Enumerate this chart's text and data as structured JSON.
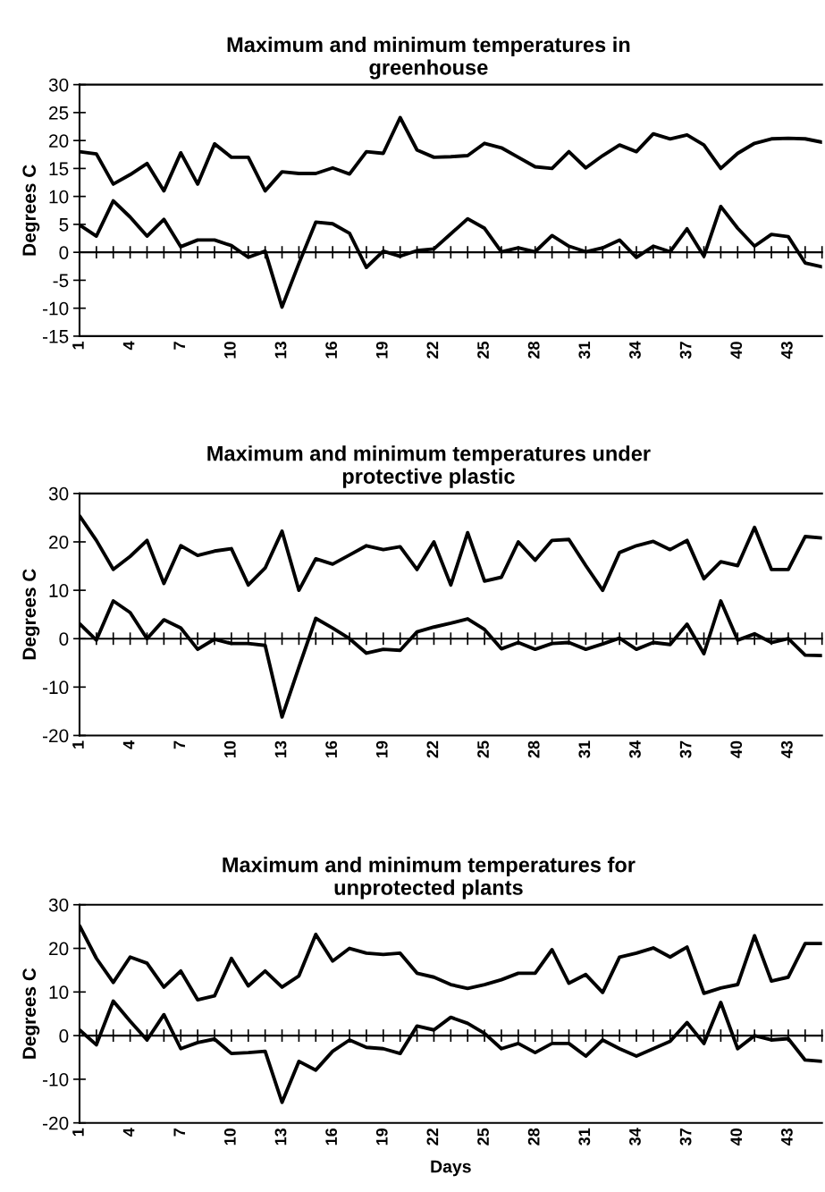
{
  "chart_data": [
    {
      "type": "line",
      "title": "Maximum and minimum temperatures in\ngreenhouse",
      "ylabel": "Degrees C",
      "categories": [
        "1",
        null,
        null,
        "4",
        null,
        null,
        "7",
        null,
        null,
        "10",
        null,
        null,
        "13",
        null,
        null,
        "16",
        null,
        null,
        "19",
        null,
        null,
        "22",
        null,
        null,
        "25",
        null,
        null,
        "28",
        null,
        null,
        "31",
        null,
        null,
        "34",
        null,
        null,
        "37",
        null,
        null,
        "40",
        null,
        null,
        "43",
        null,
        null
      ],
      "series": [
        {
          "color": "#000000",
          "values": [
            18,
            17.6,
            12.2,
            13.9,
            15.9,
            11,
            17.8,
            12.2,
            19.4,
            17,
            17,
            11,
            14.4,
            14.1,
            14.1,
            15.1,
            14,
            18,
            17.7,
            24.1,
            18.3,
            17,
            17.1,
            17.3,
            19.5,
            18.7,
            17,
            15.3,
            15,
            18,
            15.1,
            17.3,
            19.2,
            18,
            21.2,
            20.3,
            21,
            19.2,
            15,
            17.7,
            19.5,
            20.3,
            20.4,
            20.3,
            19.7
          ]
        },
        {
          "color": "#000000",
          "values": [
            4.9,
            2.9,
            9.2,
            6.3,
            2.9,
            5.9,
            1,
            2.2,
            2.2,
            1.2,
            -0.9,
            0.2,
            -9.8,
            -2,
            5.4,
            5.1,
            3.4,
            -2.7,
            0.2,
            -0.7,
            0.3,
            0.6,
            3.3,
            6,
            4.3,
            0.1,
            0.8,
            0.1,
            3,
            1.1,
            0.1,
            0.8,
            2.2,
            -0.9,
            1.1,
            0.1,
            4.2,
            -0.7,
            8.2,
            4.3,
            1.1,
            3.2,
            2.8,
            -1.9,
            -2.6
          ]
        }
      ],
      "ylim": [
        -15,
        30
      ],
      "yticks": [
        -15,
        -10,
        -5,
        0,
        5,
        10,
        15,
        20,
        25,
        30
      ]
    },
    {
      "type": "line",
      "title": "Maximum and minimum temperatures under\nprotective plastic",
      "ylabel": "Degrees C",
      "categories": [
        "1",
        null,
        null,
        "4",
        null,
        null,
        "7",
        null,
        null,
        "10",
        null,
        null,
        "13",
        null,
        null,
        "16",
        null,
        null,
        "19",
        null,
        null,
        "22",
        null,
        null,
        "25",
        null,
        null,
        "28",
        null,
        null,
        "31",
        null,
        null,
        "34",
        null,
        null,
        "37",
        null,
        null,
        "40",
        null,
        null,
        "43",
        null,
        null
      ],
      "series": [
        {
          "color": "#000000",
          "values": [
            25.4,
            20.3,
            14.3,
            17,
            20.3,
            11.4,
            19.2,
            17.2,
            18.1,
            18.6,
            11.1,
            14.6,
            22.2,
            10,
            16.5,
            15.4,
            17.3,
            19.2,
            18.4,
            19,
            14.3,
            20,
            11.1,
            21.9,
            11.9,
            12.7,
            20,
            16.2,
            20.3,
            20.5,
            15.1,
            10,
            17.8,
            19.2,
            20.1,
            18.4,
            20.3,
            12.4,
            15.9,
            15.1,
            23,
            14.3,
            14.3,
            21.1,
            20.8
          ]
        },
        {
          "color": "#000000",
          "values": [
            3.1,
            -0.3,
            7.8,
            5.4,
            0,
            3.9,
            2.2,
            -2.2,
            -0.1,
            -1,
            -1,
            -1.4,
            -16.2,
            -5.9,
            4.2,
            2.2,
            0,
            -3,
            -2.2,
            -2.4,
            1.4,
            2.4,
            3.2,
            4.1,
            1.9,
            -2.1,
            -0.8,
            -2.2,
            -1,
            -0.8,
            -2.2,
            -1.1,
            0.1,
            -2.2,
            -0.8,
            -1.2,
            3,
            -3.1,
            7.8,
            -0.3,
            1,
            -0.8,
            0,
            -3.4,
            -3.5
          ]
        }
      ],
      "ylim": [
        -20,
        30
      ],
      "yticks": [
        -20,
        -10,
        0,
        10,
        20,
        30
      ]
    },
    {
      "type": "line",
      "title": "Maximum and minimum temperatures for\nunprotected plants",
      "ylabel": "Degrees C",
      "xlabel": "Days",
      "categories": [
        "1",
        null,
        null,
        "4",
        null,
        null,
        "7",
        null,
        null,
        "10",
        null,
        null,
        "13",
        null,
        null,
        "16",
        null,
        null,
        "19",
        null,
        null,
        "22",
        null,
        null,
        "25",
        null,
        null,
        "28",
        null,
        null,
        "31",
        null,
        null,
        "34",
        null,
        null,
        "37",
        null,
        null,
        "40",
        null,
        null,
        "43",
        null,
        null
      ],
      "series": [
        {
          "color": "#000000",
          "values": [
            25.2,
            17.7,
            12.2,
            18,
            16.6,
            11.1,
            14.8,
            8.2,
            9.1,
            17.7,
            11.4,
            14.8,
            11.1,
            13.7,
            23.2,
            17.1,
            20,
            18.9,
            18.6,
            18.9,
            14.3,
            13.4,
            11.7,
            10.8,
            11.7,
            12.8,
            14.3,
            14.3,
            19.7,
            12,
            14,
            9.9,
            18,
            18.9,
            20.1,
            18,
            20.3,
            9.7,
            10.9,
            11.7,
            22.9,
            12.5,
            13.4,
            21.1,
            21.1
          ]
        },
        {
          "color": "#000000",
          "values": [
            1.3,
            -2.1,
            7.9,
            3.3,
            -1,
            4.8,
            -3,
            -1.6,
            -0.8,
            -4.1,
            -3.9,
            -3.6,
            -15.3,
            -5.9,
            -7.9,
            -3.6,
            -1,
            -2.7,
            -3,
            -4.1,
            2.2,
            1.3,
            4.2,
            2.8,
            0.5,
            -3,
            -1.8,
            -3.9,
            -1.8,
            -1.8,
            -4.7,
            -1,
            -3,
            -4.7,
            -3,
            -1.3,
            3,
            -1.8,
            7.6,
            -3,
            0,
            -1,
            -0.7,
            -5.6,
            -5.9
          ]
        }
      ],
      "ylim": [
        -20,
        30
      ],
      "yticks": [
        -20,
        -10,
        0,
        10,
        20,
        30
      ]
    }
  ]
}
